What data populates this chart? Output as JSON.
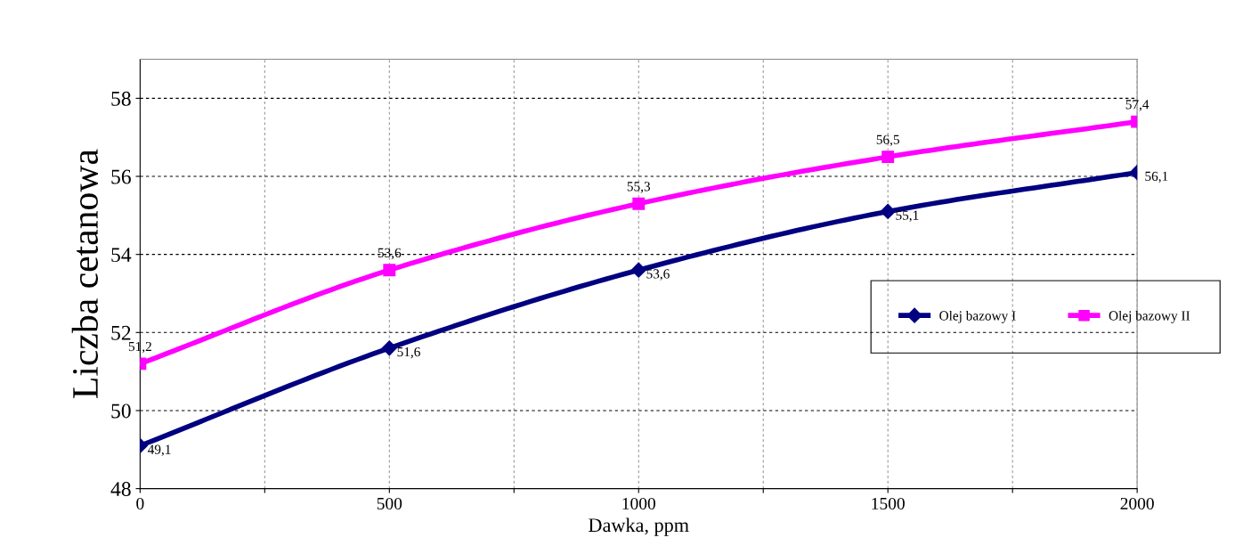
{
  "chart_data": {
    "type": "line",
    "xlabel": "Dawka, ppm",
    "ylabel": "Liczba cetanowa",
    "x": [
      0,
      500,
      1000,
      1500,
      2000
    ],
    "series": [
      {
        "name": "Olej bazowy I",
        "color": "#000080",
        "marker": "diamond",
        "values": [
          49.1,
          51.6,
          53.6,
          55.1,
          56.1
        ],
        "value_labels": [
          "49,1",
          "51,6",
          "53,6",
          "55,1",
          "56,1"
        ]
      },
      {
        "name": "Olej bazowy II",
        "color": "#ff00ff",
        "marker": "square",
        "values": [
          51.2,
          53.6,
          55.3,
          56.5,
          57.4
        ],
        "value_labels": [
          "51,2",
          "53,6",
          "55,3",
          "56,5",
          "57,4"
        ]
      }
    ],
    "xlim": [
      0,
      2000
    ],
    "xticks": [
      0,
      {
        "value": 250,
        "label": null
      },
      500,
      {
        "value": 750,
        "label": null
      },
      1000,
      {
        "value": 1250,
        "label": null
      },
      1500,
      {
        "value": 1750,
        "label": null
      },
      2000
    ],
    "ylim": [
      48,
      59
    ],
    "yticks": [
      48,
      50,
      52,
      54,
      56,
      58
    ],
    "grid": true,
    "legend": "right"
  }
}
